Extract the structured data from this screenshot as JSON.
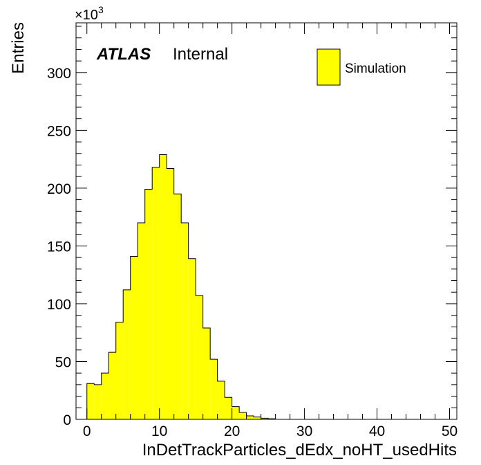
{
  "chart_data": {
    "type": "bar",
    "histogram": true,
    "bin_width": 1,
    "x_start": -1,
    "values": [
      0,
      31,
      30,
      40,
      58,
      84,
      112,
      141,
      170,
      199,
      218,
      229,
      217,
      195,
      170,
      139,
      107,
      79,
      52,
      33,
      19,
      11,
      6,
      3,
      2,
      1,
      0.5,
      0,
      0,
      0,
      0,
      0,
      0,
      0,
      0,
      0,
      0,
      0,
      0,
      0,
      0,
      0,
      0,
      0,
      0,
      0,
      0,
      0,
      0,
      0,
      0,
      0
    ],
    "xlim": [
      -1.5,
      51
    ],
    "ylim": [
      0,
      343
    ],
    "x_ticks": [
      0,
      10,
      20,
      30,
      40,
      50
    ],
    "y_ticks": [
      0,
      50,
      100,
      150,
      200,
      250,
      300
    ],
    "x_tick_labels": [
      "0",
      "10",
      "20",
      "30",
      "40",
      "50"
    ],
    "y_tick_labels": [
      "0",
      "50",
      "100",
      "150",
      "200",
      "250",
      "300"
    ],
    "xlabel": "InDetTrackParticles_dEdx_noHT_usedHits",
    "ylabel": "Entries",
    "y_multiplier_base": "×10",
    "y_multiplier_exp": "3",
    "grid": false,
    "legend_placement": "top-right",
    "legend": [
      "Simulation"
    ],
    "fill_color": "#ffff00",
    "line_color": "#000000",
    "annotation_bold": "ATLAS",
    "annotation_text": "Internal"
  }
}
